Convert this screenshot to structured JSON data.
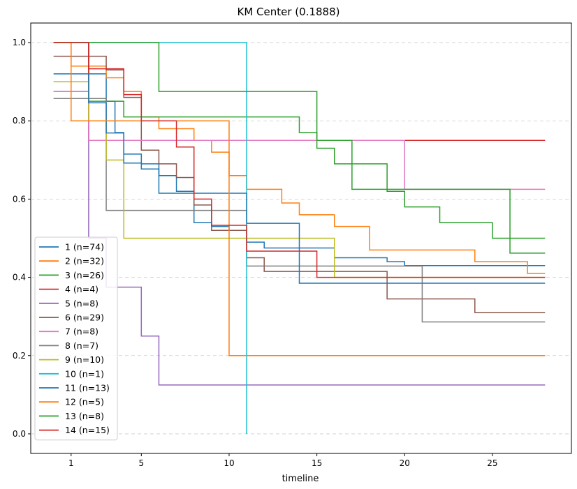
{
  "chart_data": {
    "type": "line",
    "step": true,
    "title": "KM Center (0.1888)",
    "xlabel": "timeline",
    "ylabel": "",
    "xlim": [
      -1.3,
      29.5
    ],
    "ylim": [
      -0.05,
      1.05
    ],
    "xticks": [
      1,
      5,
      10,
      15,
      20,
      25
    ],
    "yticks": [
      0.0,
      0.2,
      0.4,
      0.6,
      0.8,
      1.0
    ],
    "ytick_labels": [
      "0.0",
      "0.2",
      "0.4",
      "0.6",
      "0.8",
      "1.0"
    ],
    "grid": {
      "y": true,
      "x": false,
      "style": "dashed"
    },
    "legend_position": "lower-left",
    "series": [
      {
        "name": "1 (n=74)",
        "color": "#1f77b4",
        "x": [
          0,
          2,
          2,
          3,
          3.5,
          4,
          4,
          5,
          6,
          7,
          8,
          9,
          10,
          11,
          12,
          14,
          16,
          19,
          20,
          28
        ],
        "y": [
          1.0,
          0.92,
          0.92,
          0.85,
          0.77,
          0.77,
          0.715,
          0.69,
          0.66,
          0.62,
          0.54,
          0.53,
          0.52,
          0.49,
          0.475,
          0.475,
          0.45,
          0.44,
          0.43,
          0.43
        ]
      },
      {
        "name": "2 (n=32)",
        "color": "#ff7f0e",
        "x": [
          0,
          1,
          3,
          4,
          5,
          6,
          8,
          9,
          10,
          11,
          13,
          14,
          16,
          18,
          21,
          24,
          27,
          28
        ],
        "y": [
          1.0,
          0.94,
          0.91,
          0.875,
          0.81,
          0.78,
          0.75,
          0.72,
          0.66,
          0.625,
          0.59,
          0.56,
          0.53,
          0.47,
          0.47,
          0.44,
          0.41,
          0.41
        ]
      },
      {
        "name": "3 (n=26)",
        "color": "#2ca02c",
        "x": [
          0,
          2,
          3,
          4,
          14,
          15,
          16,
          19,
          20,
          22,
          25,
          28
        ],
        "y": [
          1.0,
          0.85,
          0.85,
          0.81,
          0.77,
          0.73,
          0.69,
          0.62,
          0.58,
          0.54,
          0.5,
          0.5
        ]
      },
      {
        "name": "4 (n=4)",
        "color": "#d62728",
        "x": [
          0,
          2,
          20,
          28
        ],
        "y": [
          1.0,
          0.75,
          0.75,
          0.75
        ]
      },
      {
        "name": "5 (n=8)",
        "color": "#9467bd",
        "x": [
          0,
          2,
          3,
          5,
          6,
          28
        ],
        "y": [
          0.875,
          0.5,
          0.375,
          0.25,
          0.125,
          0.125
        ]
      },
      {
        "name": "6 (n=29)",
        "color": "#8c564b",
        "x": [
          0,
          3,
          4,
          5,
          6,
          7,
          8,
          9,
          11,
          12,
          19,
          24,
          28
        ],
        "y": [
          0.965,
          0.93,
          0.86,
          0.725,
          0.69,
          0.655,
          0.585,
          0.52,
          0.45,
          0.415,
          0.345,
          0.31,
          0.31
        ]
      },
      {
        "name": "7 (n=8)",
        "color": "#e377c2",
        "x": [
          0,
          2,
          20,
          28
        ],
        "y": [
          0.875,
          0.75,
          0.625,
          0.625
        ]
      },
      {
        "name": "8 (n=7)",
        "color": "#7f7f7f",
        "x": [
          0,
          3,
          11,
          21,
          28
        ],
        "y": [
          0.857,
          0.571,
          0.429,
          0.286,
          0.286
        ]
      },
      {
        "name": "9 (n=10)",
        "color": "#bcbd22",
        "x": [
          0,
          2,
          3,
          4,
          16,
          28
        ],
        "y": [
          0.9,
          0.8,
          0.7,
          0.5,
          0.4,
          0.4
        ]
      },
      {
        "name": "10 (n=1)",
        "color": "#17becf",
        "x": [
          0,
          11,
          11
        ],
        "y": [
          1.0,
          1.0,
          0.0
        ]
      },
      {
        "name": "11 (n=13)",
        "color": "#1f77b4",
        "x": [
          0,
          2,
          3,
          4,
          5,
          6,
          10,
          11,
          14,
          28
        ],
        "y": [
          0.92,
          0.846,
          0.769,
          0.692,
          0.677,
          0.615,
          0.615,
          0.538,
          0.385,
          0.385
        ]
      },
      {
        "name": "12 (n=5)",
        "color": "#ff7f0e",
        "x": [
          0,
          1,
          10,
          28
        ],
        "y": [
          1.0,
          0.8,
          0.2,
          0.2
        ]
      },
      {
        "name": "13 (n=8)",
        "color": "#2ca02c",
        "x": [
          0,
          6,
          15,
          17,
          25,
          26,
          28
        ],
        "y": [
          1.0,
          0.875,
          0.75,
          0.625,
          0.625,
          0.462,
          0.462
        ]
      },
      {
        "name": "14 (n=15)",
        "color": "#d62728",
        "x": [
          0,
          2,
          4,
          5,
          7,
          8,
          9,
          10,
          11,
          15,
          28
        ],
        "y": [
          1.0,
          0.933,
          0.867,
          0.8,
          0.733,
          0.6,
          0.533,
          0.533,
          0.467,
          0.4,
          0.4
        ]
      }
    ]
  }
}
